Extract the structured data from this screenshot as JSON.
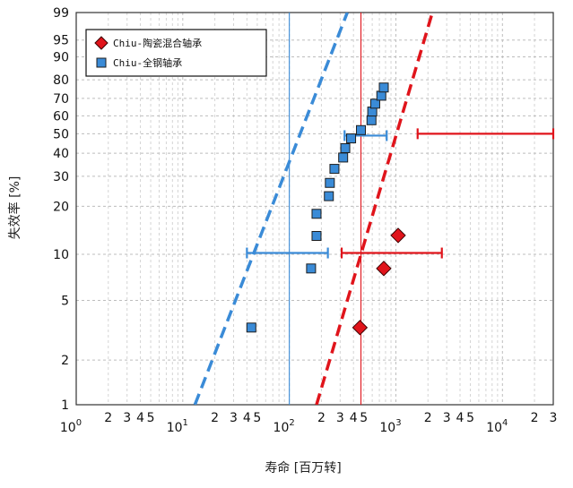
{
  "chart_data": {
    "type": "scatter",
    "xlabel": "寿命 [百万转]",
    "ylabel": "失效率 [%]",
    "x_scale": "log",
    "y_scale": "weibull",
    "xlim": [
      1,
      30000
    ],
    "ylim": [
      1,
      99
    ],
    "grid": true,
    "legend_position": "top-left",
    "x_major_ticks": [
      {
        "value": 1,
        "base": "10",
        "exp": "0"
      },
      {
        "value": 10,
        "base": "10",
        "exp": "1"
      },
      {
        "value": 100,
        "base": "10",
        "exp": "2"
      },
      {
        "value": 1000,
        "base": "10",
        "exp": "3"
      },
      {
        "value": 10000,
        "base": "10",
        "exp": "4"
      }
    ],
    "x_minor_labels": [
      {
        "value": 2,
        "label": "2"
      },
      {
        "value": 3,
        "label": "3"
      },
      {
        "value": 4,
        "label": "4"
      },
      {
        "value": 5,
        "label": "5"
      },
      {
        "value": 20,
        "label": "2"
      },
      {
        "value": 30,
        "label": "3"
      },
      {
        "value": 40,
        "label": "4"
      },
      {
        "value": 50,
        "label": "5"
      },
      {
        "value": 200,
        "label": "2"
      },
      {
        "value": 300,
        "label": "3"
      },
      {
        "value": 400,
        "label": "4"
      },
      {
        "value": 500,
        "label": "5"
      },
      {
        "value": 2000,
        "label": "2"
      },
      {
        "value": 3000,
        "label": "3"
      },
      {
        "value": 4000,
        "label": "4"
      },
      {
        "value": 5000,
        "label": "5"
      },
      {
        "value": 20000,
        "label": "2"
      },
      {
        "value": 30000,
        "label": "3"
      }
    ],
    "y_ticks": [
      1,
      2,
      5,
      10,
      20,
      30,
      40,
      50,
      60,
      70,
      80,
      90,
      95,
      99
    ],
    "y_tick_labels": [
      "1",
      "2",
      "5",
      "10",
      "20",
      "30",
      "40",
      "50",
      "60",
      "70",
      "80",
      "90",
      "95",
      "99"
    ],
    "series": [
      {
        "name": "Chiu-陶瓷混合轴承",
        "marker": "diamond",
        "color": "#e0141b",
        "fit_line": [
          [
            180,
            1
          ],
          [
            2200,
            99
          ]
        ],
        "reference_x": 470,
        "points": [
          [
            460,
            3.3
          ],
          [
            770,
            8.1
          ],
          [
            1050,
            13.2
          ]
        ],
        "intervals": [
          {
            "y": 10.2,
            "low": 310,
            "high": 2700
          },
          {
            "y": 50,
            "low": 1600,
            "high": 30000
          }
        ]
      },
      {
        "name": "Chiu-全钢轴承",
        "marker": "square",
        "color": "#3a8bd7",
        "fit_line": [
          [
            13,
            1
          ],
          [
            350,
            99
          ]
        ],
        "reference_x": 100,
        "points": [
          [
            44,
            3.3
          ],
          [
            160,
            8.1
          ],
          [
            180,
            13.1
          ],
          [
            180,
            18
          ],
          [
            235,
            23
          ],
          [
            240,
            27.5
          ],
          [
            265,
            33
          ],
          [
            320,
            38
          ],
          [
            335,
            42.5
          ],
          [
            380,
            47.5
          ],
          [
            470,
            52
          ],
          [
            590,
            57.5
          ],
          [
            600,
            62.5
          ],
          [
            640,
            67
          ],
          [
            730,
            71.5
          ],
          [
            770,
            76
          ]
        ],
        "intervals": [
          {
            "y": 10.2,
            "low": 40,
            "high": 230
          },
          {
            "y": 49,
            "low": 330,
            "high": 820
          }
        ]
      }
    ]
  }
}
